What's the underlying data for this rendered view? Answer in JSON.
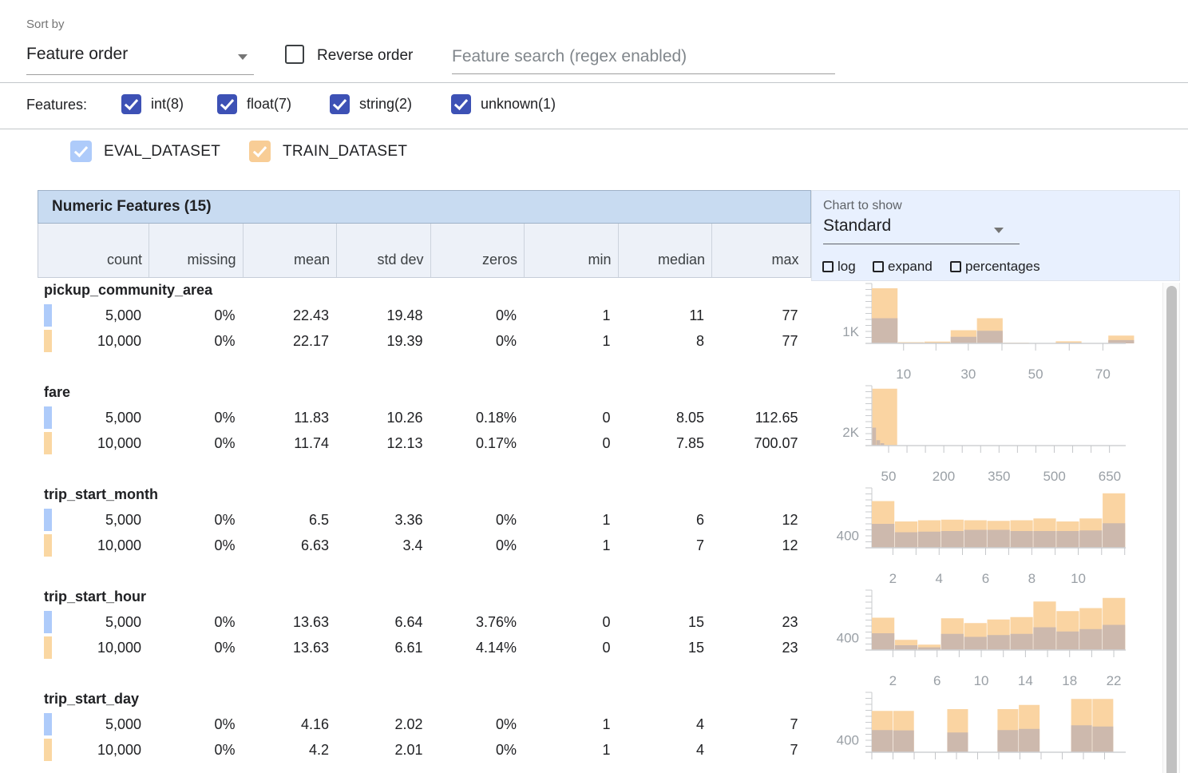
{
  "toolbar": {
    "sort_by_label": "Sort by",
    "sort_value": "Feature order",
    "reverse_label": "Reverse order",
    "search_placeholder": "Feature search (regex enabled)"
  },
  "features_bar": {
    "label": "Features:",
    "types": [
      {
        "label": "int(8)",
        "checked": true
      },
      {
        "label": "float(7)",
        "checked": true
      },
      {
        "label": "string(2)",
        "checked": true
      },
      {
        "label": "unknown(1)",
        "checked": true
      }
    ]
  },
  "datasets": [
    {
      "label": "EVAL_DATASET",
      "checked": true
    },
    {
      "label": "TRAIN_DATASET",
      "checked": true
    }
  ],
  "table": {
    "title": "Numeric Features (15)",
    "columns": [
      "count",
      "missing",
      "mean",
      "std dev",
      "zeros",
      "min",
      "median",
      "max"
    ]
  },
  "chart_controls": {
    "label": "Chart to show",
    "value": "Standard",
    "options": [
      {
        "label": "log",
        "checked": false
      },
      {
        "label": "expand",
        "checked": false
      },
      {
        "label": "percentages",
        "checked": false
      }
    ]
  },
  "colors": {
    "accent_indigo": "#3d51b5",
    "eval_checkbox": "#aecbfa",
    "train_checkbox": "#f8cd96",
    "eval_chip": "#aecbfa",
    "train_chip": "#fad7a2",
    "hist_train": "#fad4a2",
    "hist_overlap": "#cdb9ad"
  },
  "features": [
    {
      "name": "pickup_community_area",
      "rows": [
        {
          "dataset": "EVAL_DATASET",
          "count": "5,000",
          "missing": "0%",
          "mean": "22.43",
          "std_dev": "19.48",
          "zeros": "0%",
          "min": "1",
          "median": "11",
          "max": "77"
        },
        {
          "dataset": "TRAIN_DATASET",
          "count": "10,000",
          "missing": "0%",
          "mean": "22.17",
          "std_dev": "19.39",
          "zeros": "0%",
          "min": "1",
          "median": "8",
          "max": "77"
        }
      ],
      "histogram": {
        "ylabel": "1K",
        "ylabel_frac": 0.2,
        "xlabels": [
          {
            "text": "10",
            "frac": 0.125
          },
          {
            "text": "30",
            "frac": 0.38
          },
          {
            "text": "50",
            "frac": 0.645
          },
          {
            "text": "70",
            "frac": 0.91
          }
        ],
        "xticks": [
          0.125,
          0.2525,
          0.38,
          0.5125,
          0.645,
          0.7775,
          0.91
        ],
        "bars": [
          {
            "x": 0.0,
            "w": 0.1035,
            "train": 0.92,
            "overlap": 0.42
          },
          {
            "x": 0.1035,
            "w": 0.1035,
            "train": 0.02,
            "overlap": 0.01
          },
          {
            "x": 0.207,
            "w": 0.1035,
            "train": 0.03,
            "overlap": 0.012
          },
          {
            "x": 0.3105,
            "w": 0.1035,
            "train": 0.22,
            "overlap": 0.11
          },
          {
            "x": 0.414,
            "w": 0.1035,
            "train": 0.42,
            "overlap": 0.21
          },
          {
            "x": 0.5175,
            "w": 0.1035,
            "train": 0.012,
            "overlap": 0.005
          },
          {
            "x": 0.7245,
            "w": 0.1035,
            "train": 0.035,
            "overlap": 0.012
          },
          {
            "x": 0.828,
            "w": 0.1035,
            "train": 0.006,
            "overlap": 0.003
          },
          {
            "x": 0.9315,
            "w": 0.1035,
            "train": 0.13,
            "overlap": 0.055
          }
        ]
      }
    },
    {
      "name": "fare",
      "rows": [
        {
          "dataset": "EVAL_DATASET",
          "count": "5,000",
          "missing": "0%",
          "mean": "11.83",
          "std_dev": "10.26",
          "zeros": "0.18%",
          "min": "0",
          "median": "8.05",
          "max": "112.65"
        },
        {
          "dataset": "TRAIN_DATASET",
          "count": "10,000",
          "missing": "0%",
          "mean": "11.74",
          "std_dev": "12.13",
          "zeros": "0.17%",
          "min": "0",
          "median": "7.85",
          "max": "700.07"
        }
      ],
      "histogram": {
        "ylabel": "2K",
        "ylabel_frac": 0.23,
        "xlabels": [
          {
            "text": "50",
            "frac": 0.066
          },
          {
            "text": "200",
            "frac": 0.283
          },
          {
            "text": "350",
            "frac": 0.501
          },
          {
            "text": "500",
            "frac": 0.719
          },
          {
            "text": "650",
            "frac": 0.937
          }
        ],
        "xticks": [
          0.066,
          0.1385,
          0.211,
          0.2835,
          0.356,
          0.4285,
          0.501,
          0.5735,
          0.646,
          0.7185,
          0.791,
          0.8635,
          0.936
        ],
        "bars": [
          {
            "x": 0.002,
            "w": 0.1,
            "train": 0.95,
            "overlap": 0
          }
        ],
        "eval_bars": [
          {
            "x": 0.002,
            "w": 0.016,
            "h": 0.3
          },
          {
            "x": 0.018,
            "w": 0.016,
            "h": 0.09
          },
          {
            "x": 0.034,
            "w": 0.016,
            "h": 0.04
          }
        ]
      }
    },
    {
      "name": "trip_start_month",
      "rows": [
        {
          "dataset": "EVAL_DATASET",
          "count": "5,000",
          "missing": "0%",
          "mean": "6.5",
          "std_dev": "3.36",
          "zeros": "0%",
          "min": "1",
          "median": "6",
          "max": "12"
        },
        {
          "dataset": "TRAIN_DATASET",
          "count": "10,000",
          "missing": "0%",
          "mean": "6.63",
          "std_dev": "3.4",
          "zeros": "0%",
          "min": "1",
          "median": "7",
          "max": "12"
        }
      ],
      "histogram": {
        "ylabel": "400",
        "ylabel_frac": 0.21,
        "xlabels": [
          {
            "text": "2",
            "frac": 0.083
          },
          {
            "text": "4",
            "frac": 0.265
          },
          {
            "text": "6",
            "frac": 0.448
          },
          {
            "text": "8",
            "frac": 0.63
          },
          {
            "text": "10",
            "frac": 0.813
          }
        ],
        "xticks": [
          0.083,
          0.174,
          0.265,
          0.357,
          0.448,
          0.539,
          0.63,
          0.722,
          0.813,
          0.905,
          0.996
        ],
        "bars": [
          {
            "x": 0.0,
            "w": 0.0909,
            "train": 0.78,
            "overlap": 0.4
          },
          {
            "x": 0.0909,
            "w": 0.0909,
            "train": 0.44,
            "overlap": 0.26
          },
          {
            "x": 0.1818,
            "w": 0.0909,
            "train": 0.46,
            "overlap": 0.27
          },
          {
            "x": 0.2727,
            "w": 0.0909,
            "train": 0.47,
            "overlap": 0.28
          },
          {
            "x": 0.3636,
            "w": 0.0909,
            "train": 0.46,
            "overlap": 0.3
          },
          {
            "x": 0.4545,
            "w": 0.0909,
            "train": 0.45,
            "overlap": 0.3
          },
          {
            "x": 0.5455,
            "w": 0.0909,
            "train": 0.46,
            "overlap": 0.28
          },
          {
            "x": 0.6364,
            "w": 0.0909,
            "train": 0.49,
            "overlap": 0.28
          },
          {
            "x": 0.7273,
            "w": 0.0909,
            "train": 0.44,
            "overlap": 0.28
          },
          {
            "x": 0.8182,
            "w": 0.0909,
            "train": 0.49,
            "overlap": 0.29
          },
          {
            "x": 0.9091,
            "w": 0.0909,
            "train": 0.91,
            "overlap": 0.41
          }
        ]
      }
    },
    {
      "name": "trip_start_hour",
      "rows": [
        {
          "dataset": "EVAL_DATASET",
          "count": "5,000",
          "missing": "0%",
          "mean": "13.63",
          "std_dev": "6.64",
          "zeros": "3.76%",
          "min": "0",
          "median": "15",
          "max": "23"
        },
        {
          "dataset": "TRAIN_DATASET",
          "count": "10,000",
          "missing": "0%",
          "mean": "13.63",
          "std_dev": "6.61",
          "zeros": "4.14%",
          "min": "0",
          "median": "15",
          "max": "23"
        }
      ],
      "histogram": {
        "ylabel": "400",
        "ylabel_frac": 0.21,
        "xlabels": [
          {
            "text": "2",
            "frac": 0.083
          },
          {
            "text": "6",
            "frac": 0.257
          },
          {
            "text": "10",
            "frac": 0.431
          },
          {
            "text": "14",
            "frac": 0.605
          },
          {
            "text": "18",
            "frac": 0.779
          },
          {
            "text": "22",
            "frac": 0.953
          }
        ],
        "xticks": [
          0.083,
          0.17,
          0.257,
          0.344,
          0.431,
          0.518,
          0.605,
          0.692,
          0.779,
          0.866,
          0.953
        ],
        "bars": [
          {
            "x": 0.0,
            "w": 0.0909,
            "train": 0.54,
            "overlap": 0.28
          },
          {
            "x": 0.0909,
            "w": 0.0909,
            "train": 0.17,
            "overlap": 0.08
          },
          {
            "x": 0.1818,
            "w": 0.0909,
            "train": 0.09,
            "overlap": 0.045
          },
          {
            "x": 0.2727,
            "w": 0.0909,
            "train": 0.53,
            "overlap": 0.27
          },
          {
            "x": 0.3636,
            "w": 0.0909,
            "train": 0.45,
            "overlap": 0.22
          },
          {
            "x": 0.4545,
            "w": 0.0909,
            "train": 0.51,
            "overlap": 0.25
          },
          {
            "x": 0.5455,
            "w": 0.0909,
            "train": 0.55,
            "overlap": 0.27
          },
          {
            "x": 0.6364,
            "w": 0.0909,
            "train": 0.81,
            "overlap": 0.38
          },
          {
            "x": 0.7273,
            "w": 0.0909,
            "train": 0.65,
            "overlap": 0.31
          },
          {
            "x": 0.8182,
            "w": 0.0909,
            "train": 0.7,
            "overlap": 0.35
          },
          {
            "x": 0.9091,
            "w": 0.0909,
            "train": 0.87,
            "overlap": 0.42
          }
        ]
      }
    },
    {
      "name": "trip_start_day",
      "rows": [
        {
          "dataset": "EVAL_DATASET",
          "count": "5,000",
          "missing": "0%",
          "mean": "4.16",
          "std_dev": "2.02",
          "zeros": "0%",
          "min": "1",
          "median": "4",
          "max": "7"
        },
        {
          "dataset": "TRAIN_DATASET",
          "count": "10,000",
          "missing": "0%",
          "mean": "4.2",
          "std_dev": "2.01",
          "zeros": "0%",
          "min": "1",
          "median": "4",
          "max": "7"
        }
      ],
      "histogram": {
        "ylabel": "400",
        "ylabel_frac": 0.21,
        "xlabels": [],
        "xticks": [
          0,
          0.0833,
          0.1667,
          0.25,
          0.3333,
          0.4167,
          0.5,
          0.5833,
          0.6667,
          0.75,
          0.8333,
          0.9167
        ],
        "bars": [
          {
            "x": 0.0,
            "w": 0.084,
            "train": 0.69,
            "overlap": 0.37
          },
          {
            "x": 0.084,
            "w": 0.084,
            "train": 0.69,
            "overlap": 0.365
          },
          {
            "x": 0.297,
            "w": 0.084,
            "train": 0.72,
            "overlap": 0.33
          },
          {
            "x": 0.495,
            "w": 0.084,
            "train": 0.72,
            "overlap": 0.37
          },
          {
            "x": 0.579,
            "w": 0.084,
            "train": 0.79,
            "overlap": 0.39
          },
          {
            "x": 0.785,
            "w": 0.084,
            "train": 0.89,
            "overlap": 0.45
          },
          {
            "x": 0.869,
            "w": 0.084,
            "train": 0.89,
            "overlap": 0.43
          }
        ]
      }
    }
  ]
}
